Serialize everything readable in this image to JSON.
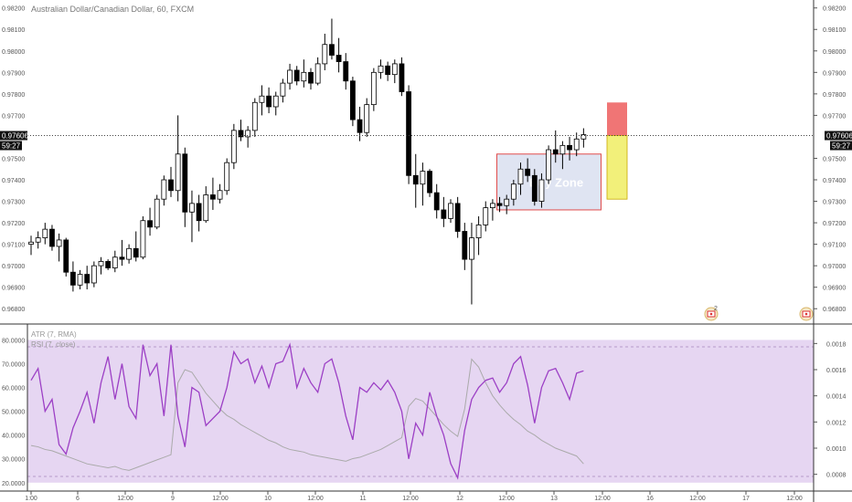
{
  "header": {
    "symbol_title": "Australian Dollar/Canadian Dollar, 60, FXCM"
  },
  "price_pane": {
    "current_price_label": "0.97606",
    "countdown_label": "59:27",
    "buy_zone_label": "Buy Zone",
    "y_ticks": [
      "0.98200",
      "0.98100",
      "0.98000",
      "0.97900",
      "0.97800",
      "0.97700",
      "0.97500",
      "0.97400",
      "0.97300",
      "0.97200",
      "0.97100",
      "0.97000",
      "0.96900",
      "0.96800"
    ],
    "event_flag_icon": "canada-flag-icon",
    "event_count_label": "2"
  },
  "indicator_pane": {
    "atr_legend": "ATR (7, RMA)",
    "rsi_legend": "RSI (7, close)",
    "left_ticks": [
      "80.0000",
      "70.0000",
      "60.0000",
      "50.0000",
      "40.0000",
      "30.0000",
      "20.0000"
    ],
    "right_ticks": [
      "0.0018",
      "0.0016",
      "0.0014",
      "0.0012",
      "0.0010",
      "0.0008"
    ]
  },
  "x_axis": {
    "ticks": [
      "1:00",
      "6",
      "12:00",
      "9",
      "12:00",
      "10",
      "12:00",
      "11",
      "12:00",
      "12",
      "12:00",
      "13",
      "12:00",
      "16",
      "12:00",
      "17",
      "12:00"
    ]
  },
  "colors": {
    "background": "#ffffff",
    "candle_up": "#ffffff",
    "candle_down": "#000000",
    "candle_outline": "#000000",
    "rsi_line": "#9c3fc5",
    "atr_line": "#aaaaaa",
    "rsi_band_fill": "#e6d6f2",
    "buy_zone_fill": "#dfe4f2",
    "buy_zone_border": "#e04b4b",
    "stop_fill": "#f07575",
    "target_fill": "#f2f07a",
    "current_price_line": "#444444"
  },
  "chart_data": {
    "type": "candlestick",
    "title": "Australian Dollar/Canadian Dollar, 60, FXCM",
    "price_ylim": [
      0.9675,
      0.9822
    ],
    "current_price": 0.97606,
    "candles": [
      [
        0.971,
        0.9714,
        0.9705,
        0.9711
      ],
      [
        0.9711,
        0.9716,
        0.9708,
        0.9713
      ],
      [
        0.9713,
        0.972,
        0.971,
        0.9717
      ],
      [
        0.9717,
        0.9719,
        0.9707,
        0.9709
      ],
      [
        0.9709,
        0.9715,
        0.9702,
        0.9712
      ],
      [
        0.9712,
        0.9713,
        0.9695,
        0.9697
      ],
      [
        0.9697,
        0.9702,
        0.9688,
        0.9691
      ],
      [
        0.9691,
        0.9698,
        0.9689,
        0.9696
      ],
      [
        0.9696,
        0.97,
        0.9689,
        0.9692
      ],
      [
        0.9692,
        0.9702,
        0.969,
        0.97
      ],
      [
        0.97,
        0.9704,
        0.9696,
        0.9702
      ],
      [
        0.9702,
        0.9703,
        0.9698,
        0.9699
      ],
      [
        0.9699,
        0.9707,
        0.9697,
        0.9704
      ],
      [
        0.9704,
        0.9712,
        0.97,
        0.9703
      ],
      [
        0.9703,
        0.971,
        0.9701,
        0.9708
      ],
      [
        0.9708,
        0.9716,
        0.9702,
        0.9704
      ],
      [
        0.9704,
        0.9723,
        0.9703,
        0.9721
      ],
      [
        0.9721,
        0.9727,
        0.9714,
        0.9718
      ],
      [
        0.9718,
        0.9733,
        0.9717,
        0.9731
      ],
      [
        0.9731,
        0.9742,
        0.9728,
        0.974
      ],
      [
        0.974,
        0.9746,
        0.9732,
        0.9735
      ],
      [
        0.9735,
        0.977,
        0.973,
        0.9752
      ],
      [
        0.9752,
        0.9755,
        0.9718,
        0.9725
      ],
      [
        0.9725,
        0.9735,
        0.9711,
        0.9729
      ],
      [
        0.9729,
        0.9733,
        0.9716,
        0.9721
      ],
      [
        0.9721,
        0.9737,
        0.972,
        0.9733
      ],
      [
        0.9733,
        0.9741,
        0.9726,
        0.9731
      ],
      [
        0.9731,
        0.9738,
        0.9729,
        0.9735
      ],
      [
        0.9735,
        0.975,
        0.9733,
        0.9748
      ],
      [
        0.9748,
        0.9766,
        0.9745,
        0.9763
      ],
      [
        0.9763,
        0.9768,
        0.9758,
        0.976
      ],
      [
        0.976,
        0.9765,
        0.9755,
        0.9763
      ],
      [
        0.9763,
        0.9778,
        0.976,
        0.9776
      ],
      [
        0.9776,
        0.9784,
        0.977,
        0.9779
      ],
      [
        0.9779,
        0.9783,
        0.9771,
        0.9774
      ],
      [
        0.9774,
        0.9781,
        0.977,
        0.9779
      ],
      [
        0.9779,
        0.9787,
        0.9776,
        0.9785
      ],
      [
        0.9785,
        0.9794,
        0.9782,
        0.9791
      ],
      [
        0.9791,
        0.9793,
        0.9784,
        0.9786
      ],
      [
        0.9786,
        0.9796,
        0.9783,
        0.979
      ],
      [
        0.979,
        0.9792,
        0.9782,
        0.9785
      ],
      [
        0.9785,
        0.9797,
        0.9784,
        0.9794
      ],
      [
        0.9794,
        0.9808,
        0.9791,
        0.9803
      ],
      [
        0.9803,
        0.9815,
        0.9796,
        0.9798
      ],
      [
        0.9798,
        0.9806,
        0.979,
        0.9795
      ],
      [
        0.9795,
        0.9799,
        0.9782,
        0.9786
      ],
      [
        0.9786,
        0.9788,
        0.9765,
        0.9768
      ],
      [
        0.9768,
        0.9774,
        0.9758,
        0.9762
      ],
      [
        0.9762,
        0.9778,
        0.976,
        0.9775
      ],
      [
        0.9775,
        0.9792,
        0.9772,
        0.979
      ],
      [
        0.979,
        0.9796,
        0.9787,
        0.9793
      ],
      [
        0.9793,
        0.9795,
        0.9786,
        0.9789
      ],
      [
        0.9789,
        0.9796,
        0.9785,
        0.9794
      ],
      [
        0.9794,
        0.9797,
        0.9779,
        0.9781
      ],
      [
        0.9781,
        0.9784,
        0.9738,
        0.9742
      ],
      [
        0.9742,
        0.9752,
        0.9727,
        0.9738
      ],
      [
        0.9738,
        0.9748,
        0.9728,
        0.9744
      ],
      [
        0.9744,
        0.9745,
        0.9732,
        0.9734
      ],
      [
        0.9734,
        0.9738,
        0.9722,
        0.9726
      ],
      [
        0.9726,
        0.9732,
        0.9718,
        0.9722
      ],
      [
        0.9722,
        0.9731,
        0.972,
        0.9729
      ],
      [
        0.9729,
        0.9732,
        0.9713,
        0.9716
      ],
      [
        0.9716,
        0.972,
        0.9698,
        0.9703
      ],
      [
        0.9703,
        0.972,
        0.9682,
        0.9713
      ],
      [
        0.9713,
        0.9723,
        0.9705,
        0.9719
      ],
      [
        0.9719,
        0.973,
        0.9716,
        0.9727
      ],
      [
        0.9727,
        0.9731,
        0.9721,
        0.9729
      ],
      [
        0.9729,
        0.9732,
        0.9725,
        0.9728
      ],
      [
        0.9728,
        0.9733,
        0.9724,
        0.9731
      ],
      [
        0.9731,
        0.974,
        0.9728,
        0.9738
      ],
      [
        0.9738,
        0.9748,
        0.9733,
        0.9745
      ],
      [
        0.9745,
        0.975,
        0.9739,
        0.9742
      ],
      [
        0.9742,
        0.9745,
        0.9728,
        0.973
      ],
      [
        0.973,
        0.9743,
        0.9727,
        0.974
      ],
      [
        0.974,
        0.9756,
        0.9738,
        0.9754
      ],
      [
        0.9754,
        0.9763,
        0.9748,
        0.9752
      ],
      [
        0.9752,
        0.9758,
        0.9745,
        0.9756
      ],
      [
        0.9756,
        0.976,
        0.9749,
        0.9754
      ],
      [
        0.9754,
        0.9762,
        0.9751,
        0.9759
      ],
      [
        0.9759,
        0.9764,
        0.9755,
        0.9761
      ]
    ],
    "zones": {
      "buy_zone": {
        "label": "Buy Zone",
        "from": 0.9726,
        "to": 0.9752
      },
      "stop_box": {
        "from": 0.97606,
        "to": 0.9776
      },
      "target_box": {
        "from": 0.9731,
        "to": 0.97606
      }
    },
    "atr": {
      "name": "ATR (7, RMA)",
      "ylim": [
        0.0007,
        0.0019
      ],
      "values": [
        0.00102,
        0.00101,
        0.00099,
        0.00098,
        0.00096,
        0.00094,
        0.00092,
        0.0009,
        0.00088,
        0.00087,
        0.00086,
        0.00085,
        0.00086,
        0.00084,
        0.00083,
        0.00085,
        0.00087,
        0.00089,
        0.00091,
        0.00093,
        0.00095,
        0.0015,
        0.0016,
        0.00158,
        0.0015,
        0.00142,
        0.00136,
        0.0013,
        0.00125,
        0.00122,
        0.00118,
        0.00115,
        0.00112,
        0.00109,
        0.00106,
        0.00104,
        0.00101,
        0.00099,
        0.00098,
        0.00097,
        0.00095,
        0.00094,
        0.00093,
        0.00092,
        0.00091,
        0.0009,
        0.00092,
        0.00093,
        0.00095,
        0.00097,
        0.00099,
        0.00102,
        0.00105,
        0.00108,
        0.00132,
        0.00138,
        0.00136,
        0.0013,
        0.00124,
        0.00118,
        0.00113,
        0.00109,
        0.0013,
        0.00168,
        0.00162,
        0.0015,
        0.0014,
        0.00133,
        0.00127,
        0.00122,
        0.00118,
        0.00113,
        0.0011,
        0.00106,
        0.00103,
        0.001,
        0.00098,
        0.00096,
        0.00094,
        0.00088
      ]
    },
    "rsi": {
      "name": "RSI (7, close)",
      "ylim": [
        18,
        84
      ],
      "band": [
        20,
        80
      ],
      "values": [
        63,
        68,
        50,
        55,
        36,
        32,
        43,
        50,
        58,
        45,
        62,
        73,
        55,
        70,
        52,
        47,
        78,
        65,
        70,
        48,
        78,
        48,
        35,
        60,
        58,
        44,
        47,
        50,
        60,
        75,
        70,
        72,
        62,
        69,
        60,
        70,
        71,
        78,
        60,
        68,
        62,
        58,
        70,
        72,
        62,
        48,
        38,
        60,
        58,
        62,
        59,
        63,
        58,
        50,
        30,
        45,
        40,
        58,
        48,
        40,
        28,
        22,
        42,
        55,
        60,
        63,
        64,
        58,
        62,
        70,
        73,
        61,
        45,
        60,
        67,
        68,
        62,
        55,
        66,
        67
      ],
      "approx_x_positions_note": null
    },
    "x_axis_ticks": [
      "1:00",
      "6",
      "12:00",
      "9",
      "12:00",
      "10",
      "12:00",
      "11",
      "12:00",
      "12",
      "12:00",
      "13",
      "12:00",
      "16",
      "12:00",
      "17",
      "12:00"
    ]
  }
}
